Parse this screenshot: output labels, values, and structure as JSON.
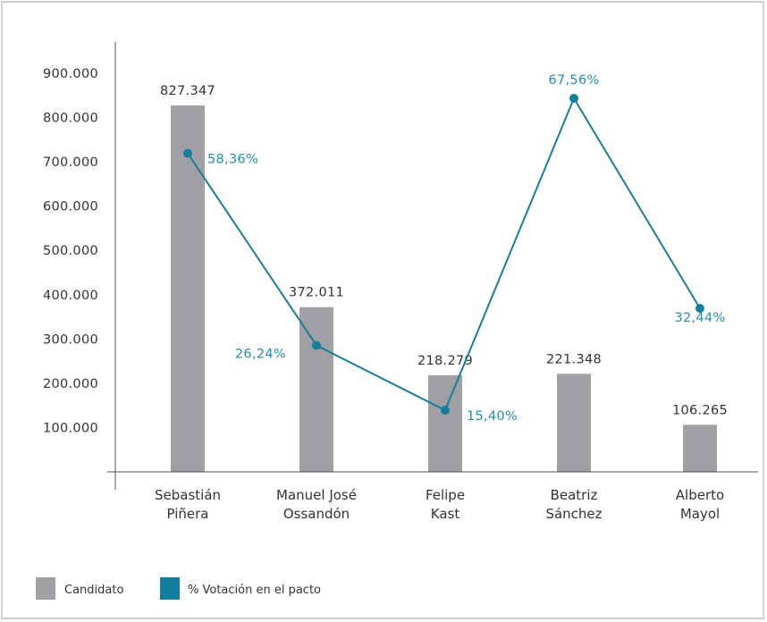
{
  "chart_data": {
    "type": "bar",
    "categories": [
      [
        "Sebastián",
        "Piñera"
      ],
      [
        "Manuel José",
        "Ossandón"
      ],
      [
        "Felipe",
        "Kast"
      ],
      [
        "Beatriz",
        "Sánchez"
      ],
      [
        "Alberto",
        "Mayol"
      ]
    ],
    "ylim": [
      0,
      900000
    ],
    "yticks": [
      {
        "value": 100000,
        "label": "100.000"
      },
      {
        "value": 200000,
        "label": "200.000"
      },
      {
        "value": 300000,
        "label": "300.000"
      },
      {
        "value": 400000,
        "label": "400.000"
      },
      {
        "value": 500000,
        "label": "500.000"
      },
      {
        "value": 600000,
        "label": "600.000"
      },
      {
        "value": 700000,
        "label": "700.000"
      },
      {
        "value": 800000,
        "label": "800.000"
      },
      {
        "value": 900000,
        "label": "900.000"
      }
    ],
    "series": [
      {
        "name": "Candidato",
        "kind": "bar",
        "color": "#a0a0a4",
        "values": [
          827347,
          372011,
          218279,
          221348,
          106265
        ],
        "labels": [
          "827.347",
          "372.011",
          "218.279",
          "221.348",
          "106.265"
        ]
      },
      {
        "name": "% Votación en el pacto",
        "kind": "line",
        "color": "#137f9e",
        "values": [
          58.36,
          26.24,
          15.4,
          67.56,
          32.44
        ],
        "labels": [
          "58,36%",
          "26,24%",
          "15,40%",
          "67,56%",
          "32,44%"
        ]
      }
    ],
    "legend": "bottom-left",
    "grid": false
  }
}
